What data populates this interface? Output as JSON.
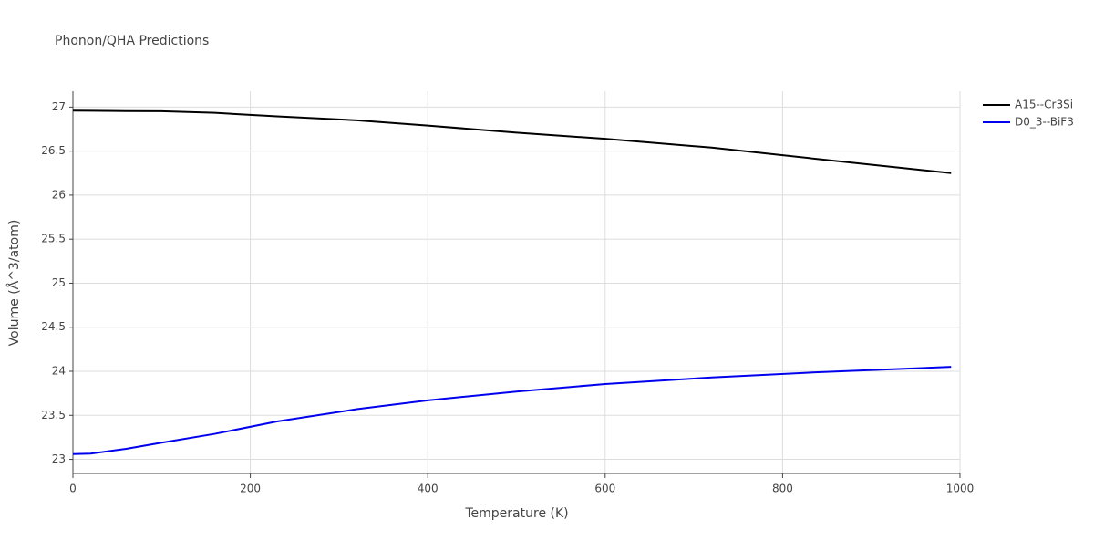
{
  "chart_data": {
    "type": "line",
    "title": "Phonon/QHA Predictions",
    "x_label": "Temperature (K)",
    "y_label": "Volume (Å^3/atom)",
    "x": [
      0,
      20,
      60,
      100,
      160,
      230,
      320,
      400,
      500,
      600,
      720,
      840,
      990
    ],
    "series": [
      {
        "name": "A15--Cr3Si",
        "color": "#000000",
        "values": [
          26.96,
          26.958,
          26.955,
          26.953,
          26.935,
          26.895,
          26.85,
          26.79,
          26.71,
          26.64,
          26.54,
          26.41,
          26.25
        ]
      },
      {
        "name": "D0_3--BiF3",
        "color": "#0000ee",
        "values": [
          23.06,
          23.065,
          23.12,
          23.19,
          23.29,
          23.43,
          23.57,
          23.67,
          23.77,
          23.855,
          23.93,
          23.99,
          24.05
        ]
      }
    ],
    "xlim": [
      0,
      1000
    ],
    "xticks": [
      0,
      200,
      400,
      600,
      800,
      1000
    ],
    "ylim": [
      22.84,
      27.18
    ],
    "yticks": [
      23,
      23.5,
      24,
      24.5,
      25,
      25.5,
      26,
      26.5,
      27
    ],
    "grid": true,
    "legend": "top-right"
  }
}
